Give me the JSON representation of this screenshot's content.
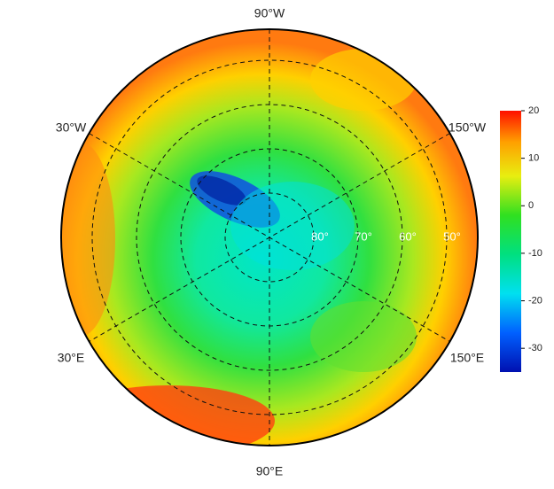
{
  "map": {
    "longitude_labels": {
      "top": "90°W",
      "upper_left": "30°W",
      "upper_right": "150°W",
      "lower_left": "30°E",
      "lower_right": "150°E",
      "bottom": "90°E"
    },
    "latitude_labels": [
      "80°",
      "70°",
      "60°",
      "50°"
    ]
  },
  "colorbar": {
    "lim": [
      -35,
      20
    ],
    "ticks": [
      20,
      10,
      0,
      -10,
      -20,
      -30
    ]
  }
}
